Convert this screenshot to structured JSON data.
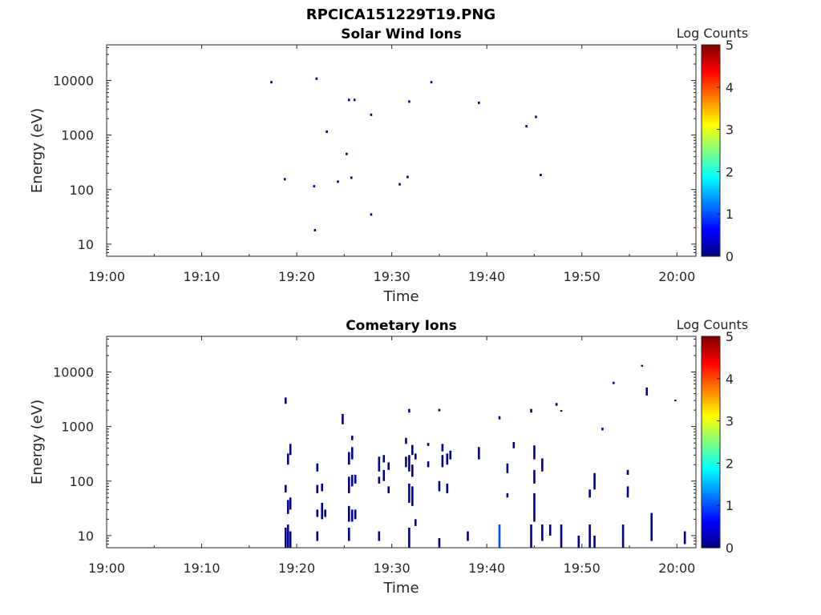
{
  "figure": {
    "title": "RPCICA151229T19.PNG"
  },
  "colormap": {
    "stops": [
      "#00007f",
      "#0000ff",
      "#007fff",
      "#00ffff",
      "#7fff7f",
      "#ffff00",
      "#ff7f00",
      "#ff0000",
      "#7f0000"
    ],
    "spot_color": "#00008f"
  },
  "chart_data": [
    {
      "type": "heatmap",
      "title": "Solar Wind Ions",
      "xlabel": "Time",
      "ylabel": "Energy (eV)",
      "x_ticks": [
        "19:00",
        "19:10",
        "19:20",
        "19:30",
        "19:40",
        "19:50",
        "20:00"
      ],
      "xlim": [
        "19:00",
        "20:02"
      ],
      "y_scale": "log",
      "y_ticks": [
        10,
        100,
        1000,
        10000
      ],
      "ylim": [
        6,
        45000
      ],
      "colorbar": {
        "label": "Log Counts",
        "ticks": [
          0,
          1,
          2,
          3,
          4,
          5
        ],
        "range": [
          0,
          5
        ]
      },
      "grid": false,
      "points": [
        {
          "t": "19:17:20",
          "e": 9300,
          "v": 0.3
        },
        {
          "t": "19:18:45",
          "e": 155,
          "v": 0.3
        },
        {
          "t": "19:21:50",
          "e": 115,
          "v": 0.3
        },
        {
          "t": "19:21:55",
          "e": 18,
          "v": 0.3
        },
        {
          "t": "19:22:05",
          "e": 10800,
          "v": 0.3
        },
        {
          "t": "19:23:10",
          "e": 1150,
          "v": 0.3
        },
        {
          "t": "19:24:20",
          "e": 140,
          "v": 0.3
        },
        {
          "t": "19:25:15",
          "e": 450,
          "v": 0.3
        },
        {
          "t": "19:25:30",
          "e": 4400,
          "v": 0.3
        },
        {
          "t": "19:25:45",
          "e": 165,
          "v": 0.3
        },
        {
          "t": "19:26:05",
          "e": 4400,
          "v": 0.3
        },
        {
          "t": "19:27:50",
          "e": 2350,
          "v": 0.3
        },
        {
          "t": "19:27:50",
          "e": 35,
          "v": 0.3
        },
        {
          "t": "19:30:50",
          "e": 125,
          "v": 0.3
        },
        {
          "t": "19:31:40",
          "e": 170,
          "v": 0.3
        },
        {
          "t": "19:31:50",
          "e": 4100,
          "v": 0.3
        },
        {
          "t": "19:34:10",
          "e": 9300,
          "v": 0.3
        },
        {
          "t": "19:39:10",
          "e": 3900,
          "v": 0.3
        },
        {
          "t": "19:44:10",
          "e": 1450,
          "v": 0.3
        },
        {
          "t": "19:45:10",
          "e": 2150,
          "v": 0.3
        },
        {
          "t": "19:45:40",
          "e": 185,
          "v": 0.3
        }
      ]
    },
    {
      "type": "heatmap",
      "title": "Cometary Ions",
      "xlabel": "Time",
      "ylabel": "Energy (eV)",
      "x_ticks": [
        "19:00",
        "19:10",
        "19:20",
        "19:30",
        "19:40",
        "19:50",
        "20:00"
      ],
      "xlim": [
        "19:00",
        "20:02"
      ],
      "y_scale": "log",
      "y_ticks": [
        10,
        100,
        1000,
        10000
      ],
      "ylim": [
        6,
        45000
      ],
      "colorbar": {
        "label": "Log Counts",
        "ticks": [
          0,
          1,
          2,
          3,
          4,
          5
        ],
        "range": [
          0,
          5
        ]
      },
      "grid": false,
      "columns": [
        {
          "t": "19:18:50",
          "ranges": [
            [
              6,
              14
            ],
            [
              62,
              85
            ],
            [
              2600,
              3400
            ]
          ],
          "v": 0.3
        },
        {
          "t": "19:19:05",
          "ranges": [
            [
              6,
              16
            ],
            [
              25,
              45
            ],
            [
              200,
              320
            ]
          ],
          "v": 0.3
        },
        {
          "t": "19:19:20",
          "ranges": [
            [
              6,
              12
            ],
            [
              30,
              50
            ],
            [
              300,
              480
            ]
          ],
          "v": 0.3
        },
        {
          "t": "19:22:10",
          "ranges": [
            [
              8,
              12
            ],
            [
              22,
              30
            ],
            [
              60,
              85
            ],
            [
              150,
              210
            ]
          ],
          "v": 0.3
        },
        {
          "t": "19:22:40",
          "ranges": [
            [
              20,
              40
            ],
            [
              65,
              90
            ]
          ],
          "v": 0.3
        },
        {
          "t": "19:23:00",
          "ranges": [
            [
              22,
              30
            ]
          ],
          "v": 0.3
        },
        {
          "t": "19:24:50",
          "ranges": [
            [
              1100,
              1700
            ]
          ],
          "v": 0.3
        },
        {
          "t": "19:25:30",
          "ranges": [
            [
              8,
              14
            ],
            [
              18,
              35
            ],
            [
              60,
              120
            ],
            [
              200,
              340
            ]
          ],
          "v": 0.3
        },
        {
          "t": "19:25:50",
          "ranges": [
            [
              18,
              30
            ],
            [
              80,
              130
            ],
            [
              250,
              420
            ],
            [
              560,
              680
            ]
          ],
          "v": 0.3
        },
        {
          "t": "19:26:10",
          "ranges": [
            [
              20,
              30
            ],
            [
              90,
              130
            ]
          ],
          "v": 0.3
        },
        {
          "t": "19:28:40",
          "ranges": [
            [
              8,
              12
            ],
            [
              90,
              120
            ],
            [
              150,
              280
            ]
          ],
          "v": 0.3
        },
        {
          "t": "19:29:10",
          "ranges": [
            [
              100,
              160
            ],
            [
              220,
              300
            ]
          ],
          "v": 0.3
        },
        {
          "t": "19:29:40",
          "ranges": [
            [
              60,
              80
            ],
            [
              160,
              220
            ]
          ],
          "v": 0.3
        },
        {
          "t": "19:31:30",
          "ranges": [
            [
              180,
              280
            ],
            [
              480,
              620
            ]
          ],
          "v": 0.3
        },
        {
          "t": "19:31:50",
          "ranges": [
            [
              6,
              14
            ],
            [
              40,
              90
            ],
            [
              150,
              300
            ],
            [
              1800,
              2100
            ]
          ],
          "v": 0.3
        },
        {
          "t": "19:32:10",
          "ranges": [
            [
              35,
              80
            ],
            [
              120,
              200
            ],
            [
              300,
              460
            ]
          ],
          "v": 0.3
        },
        {
          "t": "19:32:30",
          "ranges": [
            [
              15,
              20
            ],
            [
              250,
              320
            ]
          ],
          "v": 0.3
        },
        {
          "t": "19:33:50",
          "ranges": [
            [
              180,
              230
            ],
            [
              440,
              500
            ]
          ],
          "v": 0.3
        },
        {
          "t": "19:35:00",
          "ranges": [
            [
              6,
              9
            ],
            [
              65,
              100
            ],
            [
              1900,
              2100
            ]
          ],
          "v": 0.3
        },
        {
          "t": "19:35:20",
          "ranges": [
            [
              180,
              300
            ],
            [
              350,
              480
            ]
          ],
          "v": 0.3
        },
        {
          "t": "19:35:50",
          "ranges": [
            [
              60,
              90
            ],
            [
              200,
              320
            ]
          ],
          "v": 0.3
        },
        {
          "t": "19:36:10",
          "ranges": [
            [
              250,
              360
            ]
          ],
          "v": 0.3
        },
        {
          "t": "19:38:00",
          "ranges": [
            [
              8,
              12
            ]
          ],
          "v": 0.3
        },
        {
          "t": "19:39:10",
          "ranges": [
            [
              250,
              420
            ]
          ],
          "v": 0.3
        },
        {
          "t": "19:41:20",
          "ranges": [
            [
              6,
              16
            ]
          ],
          "v": 1.0
        },
        {
          "t": "19:41:20",
          "ranges": [
            [
              1350,
              1550
            ]
          ],
          "v": 0.3
        },
        {
          "t": "19:42:10",
          "ranges": [
            [
              50,
              60
            ],
            [
              140,
              210
            ]
          ],
          "v": 0.3
        },
        {
          "t": "19:42:50",
          "ranges": [
            [
              400,
              520
            ]
          ],
          "v": 0.3
        },
        {
          "t": "19:44:40",
          "ranges": [
            [
              6,
              16
            ],
            [
              1800,
              2100
            ]
          ],
          "v": 0.3
        },
        {
          "t": "19:45:00",
          "ranges": [
            [
              18,
              60
            ],
            [
              90,
              160
            ],
            [
              250,
              450
            ]
          ],
          "v": 0.3
        },
        {
          "t": "19:45:50",
          "ranges": [
            [
              8,
              16
            ],
            [
              150,
              260
            ]
          ],
          "v": 0.3
        },
        {
          "t": "19:46:40",
          "ranges": [
            [
              10,
              16
            ]
          ],
          "v": 0.3
        },
        {
          "t": "19:47:20",
          "ranges": [
            [
              2400,
              2700
            ]
          ],
          "v": 0.3
        },
        {
          "t": "19:47:50",
          "ranges": [
            [
              6,
              16
            ],
            [
              1900,
              2000
            ]
          ],
          "v": 0.3
        },
        {
          "t": "19:49:40",
          "ranges": [
            [
              6,
              10
            ]
          ],
          "v": 0.3
        },
        {
          "t": "19:50:50",
          "ranges": [
            [
              6,
              16
            ],
            [
              50,
              70
            ]
          ],
          "v": 0.3
        },
        {
          "t": "19:51:20",
          "ranges": [
            [
              6,
              10
            ],
            [
              70,
              140
            ]
          ],
          "v": 0.3
        },
        {
          "t": "19:52:10",
          "ranges": [
            [
              850,
              950
            ]
          ],
          "v": 0.3
        },
        {
          "t": "19:53:20",
          "ranges": [
            [
              6000,
              6600
            ]
          ],
          "v": 0.3
        },
        {
          "t": "19:54:20",
          "ranges": [
            [
              6,
              16
            ]
          ],
          "v": 0.3
        },
        {
          "t": "19:54:50",
          "ranges": [
            [
              50,
              80
            ],
            [
              130,
              160
            ]
          ],
          "v": 0.3
        },
        {
          "t": "19:56:20",
          "ranges": [
            [
              12500,
              13500
            ]
          ],
          "v": 0.3
        },
        {
          "t": "19:56:50",
          "ranges": [
            [
              3700,
              5200
            ]
          ],
          "v": 0.3
        },
        {
          "t": "19:57:20",
          "ranges": [
            [
              8,
              26
            ]
          ],
          "v": 0.3
        },
        {
          "t": "19:59:50",
          "ranges": [
            [
              2900,
              3100
            ]
          ],
          "v": 0.3
        },
        {
          "t": "20:00:50",
          "ranges": [
            [
              7,
              12
            ]
          ],
          "v": 0.3
        }
      ]
    }
  ]
}
